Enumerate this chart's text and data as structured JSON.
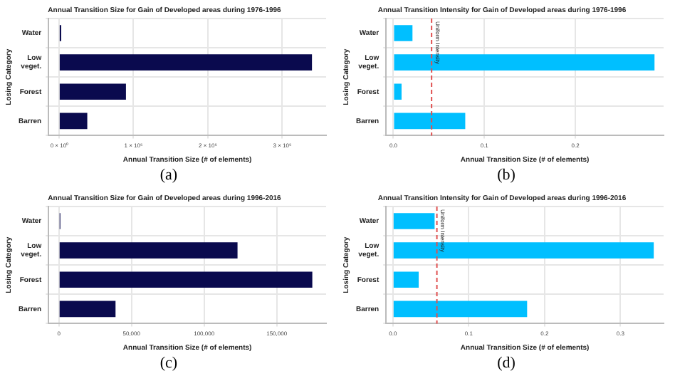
{
  "chart_data": [
    {
      "type": "bar",
      "orientation": "horizontal",
      "title": "Annual Transition Size for Gain of Developed areas during 1976-1996",
      "xlabel": "Annual Transition Size (# of elements)",
      "ylabel": "Losing Category",
      "categories": [
        "Water",
        "Low veget.",
        "Forest",
        "Barren"
      ],
      "values": [
        3000,
        340000,
        90000,
        38000
      ],
      "color": "#0a0a4e",
      "xlim": [
        -14000,
        359000
      ],
      "xticks": [
        {
          "value": 0,
          "label": "0 × 10⁰"
        },
        {
          "value": 100000,
          "label": "1 × 10⁵"
        },
        {
          "value": 200000,
          "label": "2 × 10⁵"
        },
        {
          "value": 300000,
          "label": "3 × 10⁵"
        }
      ],
      "grid": true,
      "annotations": [
        "(a)"
      ]
    },
    {
      "type": "bar",
      "orientation": "horizontal",
      "title": "Annual Transition Intensity for Gain of Developed areas during 1976-1996",
      "xlabel": "Annual Transition Size (# of elements)",
      "ylabel": "Losing Category",
      "categories": [
        "Water",
        "Low veget.",
        "Forest",
        "Barren"
      ],
      "values": [
        0.021,
        0.287,
        0.009,
        0.079
      ],
      "color": "#00bfff",
      "xlim": [
        -0.008,
        0.297
      ],
      "xticks": [
        {
          "value": 0,
          "label": "0.0"
        },
        0.1,
        0.2
      ],
      "grid": true,
      "ref_lines": [
        {
          "axis": "x",
          "value": 0.042,
          "label": "Uniform Intensity",
          "color": "#e05050",
          "line_style": "dashed"
        }
      ],
      "annotations": [
        "(b)"
      ]
    },
    {
      "type": "bar",
      "orientation": "horizontal",
      "title": "Annual Transition Size for Gain of Developed areas during 1996-2016",
      "xlabel": "Annual Transition Size (# of elements)",
      "ylabel": "Losing Category",
      "categories": [
        "Water",
        "Low veget.",
        "Forest",
        "Barren"
      ],
      "values": [
        1000,
        123000,
        174500,
        39000
      ],
      "color": "#0a0a4e",
      "xlim": [
        -7100,
        184000
      ],
      "xticks": [
        0,
        {
          "value": 50000,
          "label": "50,000"
        },
        {
          "value": 100000,
          "label": "100,000"
        },
        {
          "value": 150000,
          "label": "150,000"
        }
      ],
      "grid": true,
      "annotations": [
        "(c)"
      ]
    },
    {
      "type": "bar",
      "orientation": "horizontal",
      "title": "Annual Transition Intensity for Gain of Developed areas during 1996-2016",
      "xlabel": "Annual Transition Size (# of elements)",
      "ylabel": "Losing Category",
      "categories": [
        "Water",
        "Low veget.",
        "Forest",
        "Barren"
      ],
      "values": [
        0.055,
        0.344,
        0.034,
        0.177
      ],
      "color": "#00bfff",
      "xlim": [
        -0.009,
        0.357
      ],
      "xticks": [
        {
          "value": 0,
          "label": "0.0"
        },
        0.1,
        0.2,
        0.3
      ],
      "grid": true,
      "ref_lines": [
        {
          "axis": "x",
          "value": 0.058,
          "label": "Uniform Intensity",
          "color": "#e05050",
          "line_style": "dashed"
        }
      ],
      "annotations": [
        "(d)"
      ]
    }
  ]
}
